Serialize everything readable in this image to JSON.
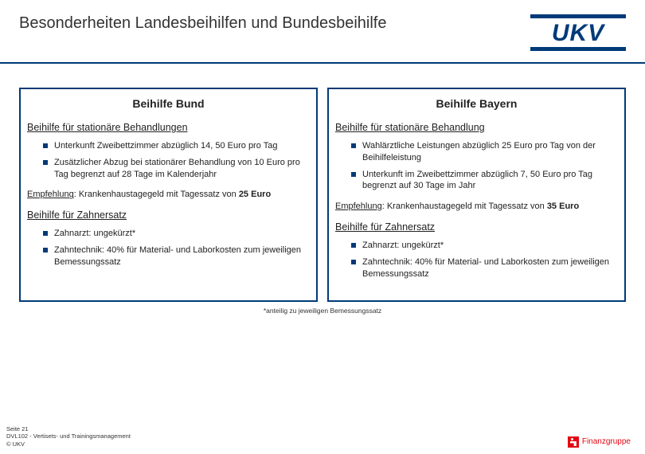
{
  "header": {
    "title": "Besonderheiten Landesbeihilfen und Bundesbeihilfe",
    "logo": "UKV"
  },
  "panels": {
    "left": {
      "title": "Beihilfe Bund",
      "section1_heading": "Beihilfe für stationäre Behandlungen",
      "bullets1": [
        "Unterkunft Zweibettzimmer abzüglich 14, 50 Euro pro Tag",
        "Zusätzlicher Abzug bei stationärer Behandlung von 10 Euro pro Tag begrenzt auf 28 Tage im Kalenderjahr"
      ],
      "recommend_label": "Empfehlung",
      "recommend_text": ": Krankenhaustagegeld mit Tagessatz von ",
      "recommend_bold": "25 Euro",
      "section2_heading": "Beihilfe für Zahnersatz",
      "bullets2": [
        "Zahnarzt: ungekürzt*",
        "Zahntechnik: 40% für Material- und Laborkosten zum jeweiligen Bemessungssatz"
      ]
    },
    "right": {
      "title": "Beihilfe Bayern",
      "section1_heading": "Beihilfe für stationäre Behandlung",
      "bullets1": [
        "Wahlärztliche Leistungen abzüglich 25 Euro pro Tag von der Beihilfeleistung",
        "Unterkunft im Zweibettzimmer abzüglich 7, 50 Euro pro Tag begrenzt auf 30 Tage im Jahr"
      ],
      "recommend_label": "Empfehlung",
      "recommend_text": ": Krankenhaustagegeld mit Tagessatz von ",
      "recommend_bold": "35 Euro",
      "section2_heading": "Beihilfe für Zahnersatz",
      "bullets2": [
        "Zahnarzt: ungekürzt*",
        "Zahntechnik: 40% für Material- und Laborkosten zum jeweiligen Bemessungssatz"
      ]
    }
  },
  "footnote": "*anteilig zu jeweiligen Bemessungssatz",
  "footer": {
    "line1": "Seite 21",
    "line2": "DVL102 - Vertisets- und Trainingsmanagement",
    "line3": "© UKV",
    "sparkasse": "Finanzgruppe"
  },
  "colors": {
    "primary": "#003a78",
    "accent_red": "#e30613",
    "text": "#222222",
    "background": "#ffffff"
  }
}
